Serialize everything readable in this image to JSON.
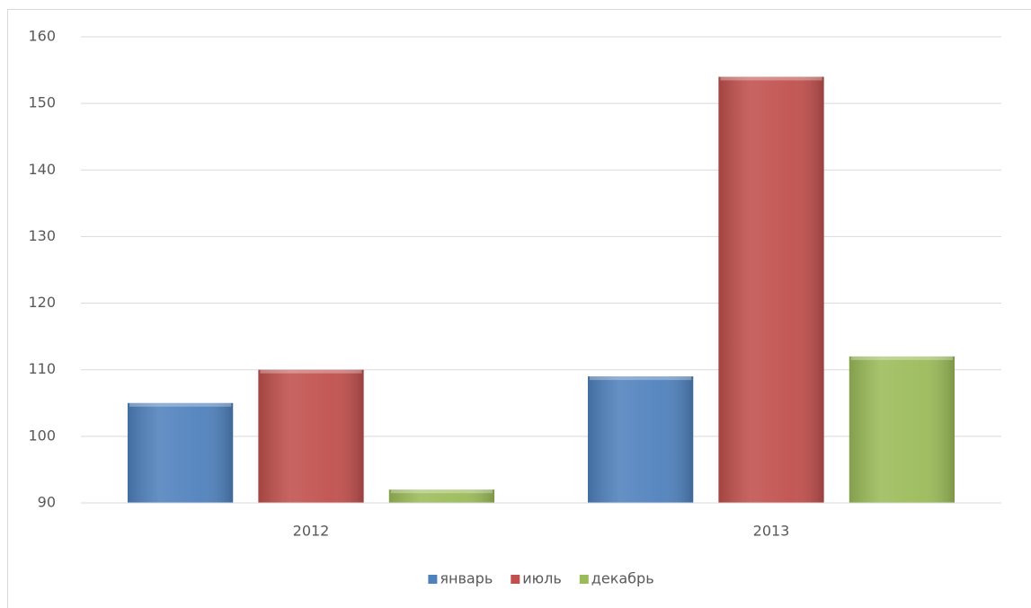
{
  "chart_data": {
    "type": "bar",
    "categories": [
      "2012",
      "2013"
    ],
    "series": [
      {
        "name": "январь",
        "color": "#4f81bd",
        "values": [
          105,
          109
        ]
      },
      {
        "name": "июль",
        "color": "#c0504d",
        "values": [
          110,
          154
        ]
      },
      {
        "name": "декабрь",
        "color": "#9bbb59",
        "values": [
          92,
          112
        ]
      }
    ],
    "ylim": [
      90,
      160
    ],
    "yticks": [
      90,
      100,
      110,
      120,
      130,
      140,
      150,
      160
    ],
    "grid": true,
    "legend": "bottom"
  }
}
